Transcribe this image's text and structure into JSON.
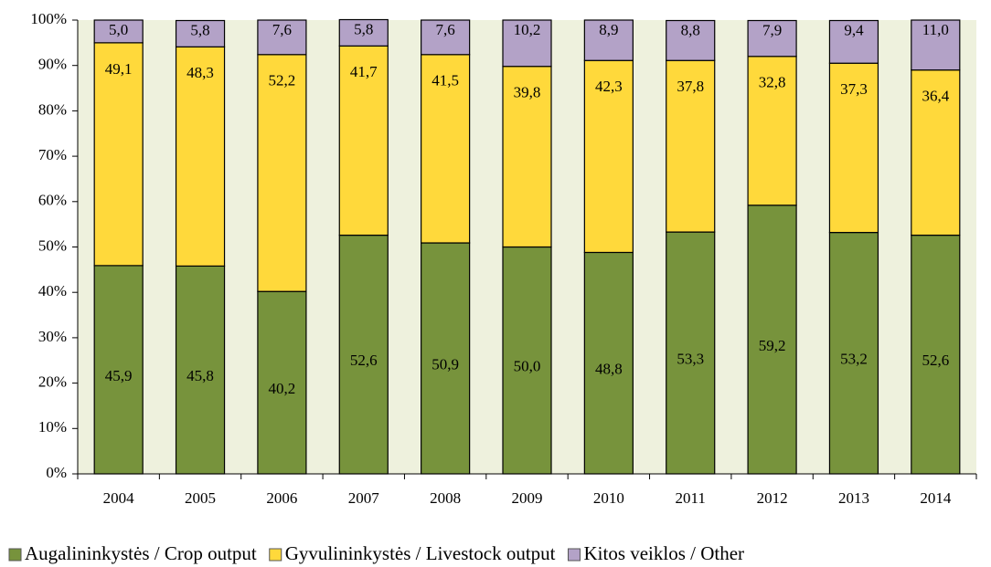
{
  "chart_data": {
    "type": "stacked_bar",
    "categories": [
      "2004",
      "2005",
      "2006",
      "2007",
      "2008",
      "2009",
      "2010",
      "2011",
      "2012",
      "2013",
      "2014"
    ],
    "series": [
      {
        "name": "Augalininkystės / Crop output",
        "color": "#77933c",
        "values": [
          45.9,
          45.8,
          40.2,
          52.6,
          50.9,
          50.0,
          48.8,
          53.3,
          59.2,
          53.2,
          52.6
        ],
        "value_labels": [
          "45,9",
          "45,8",
          "40,2",
          "52,6",
          "50,9",
          "50,0",
          "48,8",
          "53,3",
          "59,2",
          "53,2",
          "52,6"
        ]
      },
      {
        "name": "Gyvulininkystės / Livestock output",
        "color": "#ffd93b",
        "values": [
          49.1,
          48.3,
          52.2,
          41.7,
          41.5,
          39.8,
          42.3,
          37.8,
          32.8,
          37.3,
          36.4
        ],
        "value_labels": [
          "49,1",
          "48,3",
          "52,2",
          "41,7",
          "41,5",
          "39,8",
          "42,3",
          "37,8",
          "32,8",
          "37,3",
          "36,4"
        ]
      },
      {
        "name": "Kitos veiklos / Other",
        "color": "#b3a2c7",
        "values": [
          5.0,
          5.8,
          7.6,
          5.8,
          7.6,
          10.2,
          8.9,
          8.8,
          7.9,
          9.4,
          11.0
        ],
        "value_labels": [
          "5,0",
          "5,8",
          "7,6",
          "5,8",
          "7,6",
          "10,2",
          "8,9",
          "8,8",
          "7,9",
          "9,4",
          "11,0"
        ]
      }
    ],
    "ylim": [
      0,
      100
    ],
    "yticks": [
      {
        "value": 0,
        "label": "0%"
      },
      {
        "value": 10,
        "label": "10%"
      },
      {
        "value": 20,
        "label": "20%"
      },
      {
        "value": 30,
        "label": "30%"
      },
      {
        "value": 40,
        "label": "40%"
      },
      {
        "value": 50,
        "label": "50%"
      },
      {
        "value": 60,
        "label": "60%"
      },
      {
        "value": 70,
        "label": "70%"
      },
      {
        "value": 80,
        "label": "80%"
      },
      {
        "value": 90,
        "label": "90%"
      },
      {
        "value": 100,
        "label": "100%"
      }
    ],
    "grid": false,
    "legend": "bottom"
  }
}
